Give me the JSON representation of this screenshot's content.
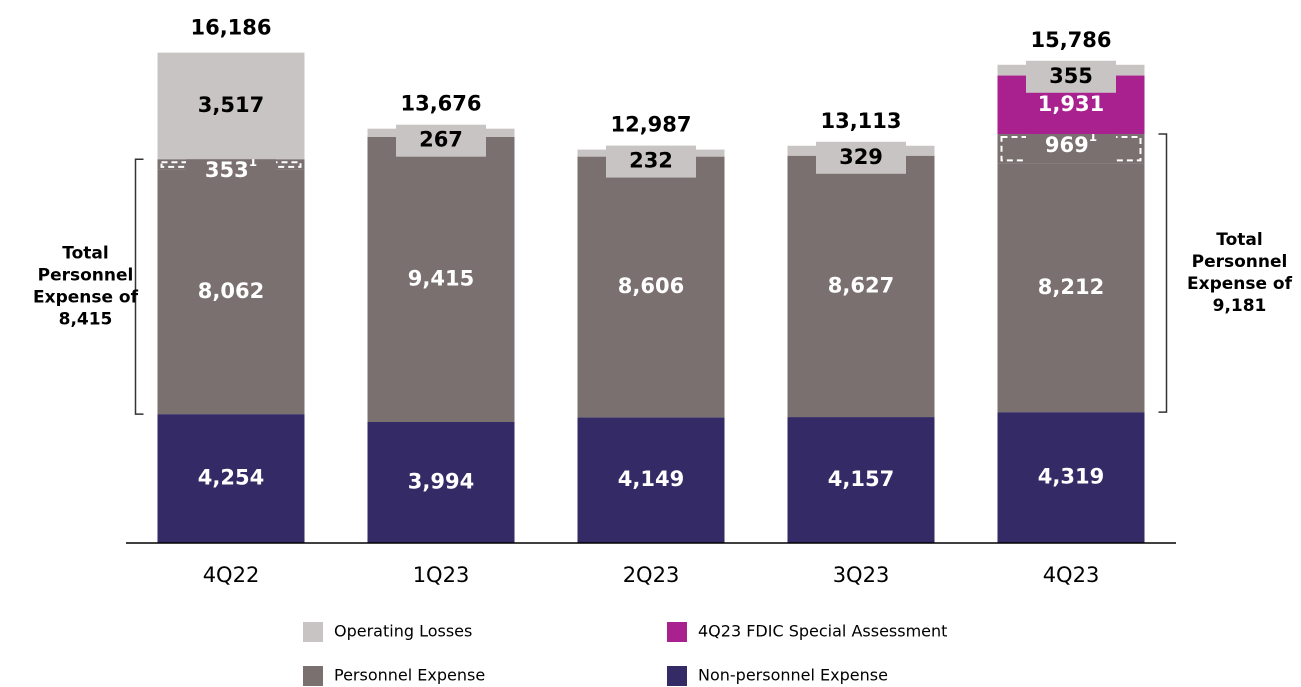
{
  "chart_data": {
    "type": "stacked_bar",
    "categories": [
      "4Q22",
      "1Q23",
      "2Q23",
      "3Q23",
      "4Q23"
    ],
    "series": [
      {
        "name": "Non-personnel Expense",
        "color": "#342a66",
        "values": [
          4254,
          3994,
          4149,
          4157,
          4319
        ],
        "value_labels": [
          "4,254",
          "3,994",
          "4,149",
          "4,157",
          "4,319"
        ]
      },
      {
        "name": "Personnel Expense",
        "color": "#7a706f",
        "values": [
          8062,
          9415,
          8606,
          8627,
          8212
        ],
        "value_labels": [
          "8,062",
          "9,415",
          "8,606",
          "8,627",
          "8,212"
        ]
      },
      {
        "color": "#7a706f",
        "dashed": true,
        "footnote": "1",
        "values": [
          353,
          null,
          null,
          null,
          969
        ],
        "value_labels": [
          "353",
          null,
          null,
          null,
          "969"
        ]
      },
      {
        "name": "4Q23 FDIC Special Assessment",
        "color": "#a8218e",
        "values": [
          null,
          null,
          null,
          null,
          1931
        ],
        "value_labels": [
          null,
          null,
          null,
          null,
          "1,931"
        ]
      },
      {
        "name": "Operating Losses",
        "color": "#c9c4c4",
        "values": [
          3517,
          267,
          232,
          329,
          355
        ],
        "value_labels": [
          "3,517",
          "267",
          "232",
          "329",
          "355"
        ]
      }
    ],
    "totals": [
      16186,
      13676,
      12987,
      13113,
      15786
    ],
    "total_labels": [
      "16,186",
      "13,676",
      "12,987",
      "13,113",
      "15,786"
    ],
    "ylim": [
      0,
      17000
    ],
    "annotations": [
      {
        "category": "4Q22",
        "side": "left",
        "lines": [
          "Total",
          "Personnel",
          "Expense of",
          "8,415"
        ]
      },
      {
        "category": "4Q23",
        "side": "right",
        "lines": [
          "Total",
          "Personnel",
          "Expense of",
          "9,181"
        ]
      }
    ]
  }
}
